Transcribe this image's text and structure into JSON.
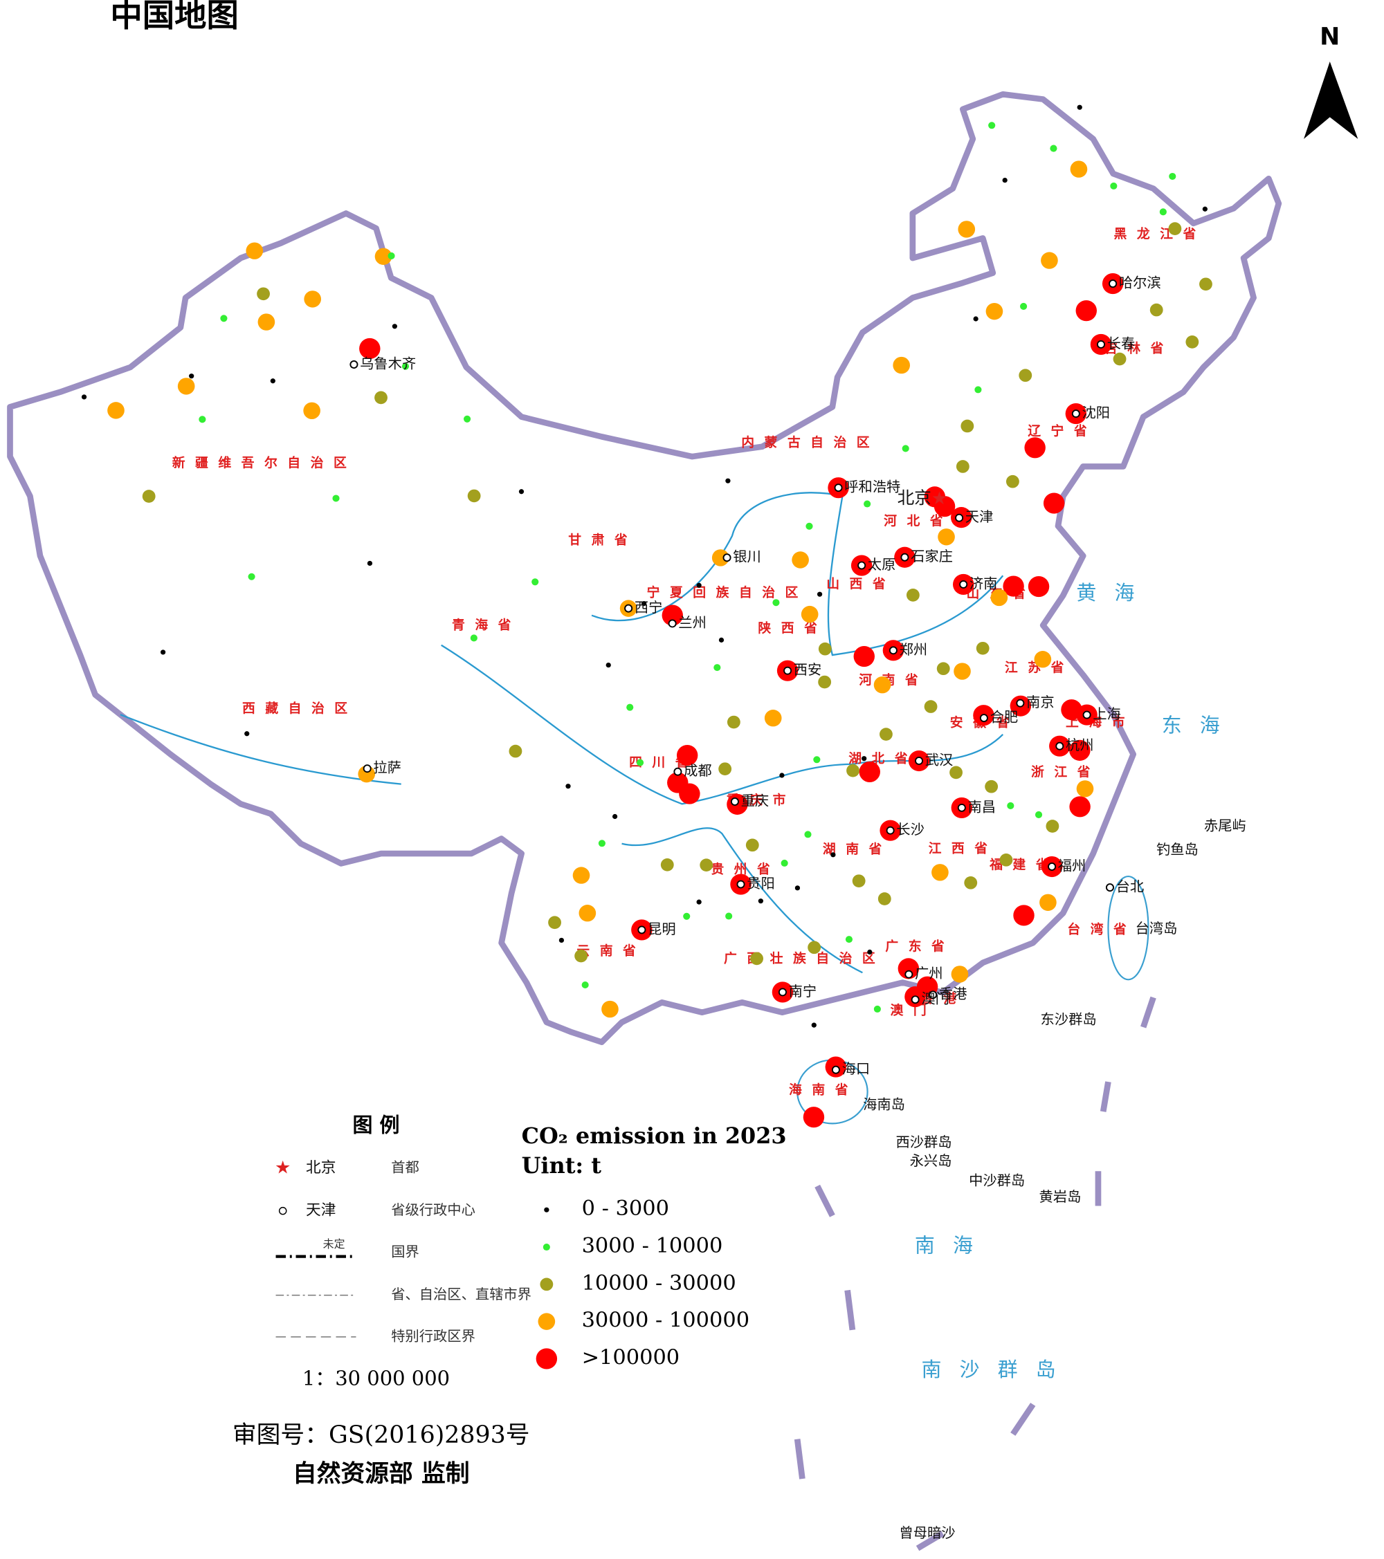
{
  "title": "中国地图",
  "north": "N",
  "legend": {
    "title": "图 例",
    "items": [
      {
        "symbol": "北京",
        "text": "首都"
      },
      {
        "symbol": "天津",
        "text": "省级行政中心"
      },
      {
        "symbol": "未定",
        "text": "国界"
      },
      {
        "text": "省、自治区、直辖市界"
      },
      {
        "text": "特别行政区界"
      }
    ],
    "scale": "1：30 000 000"
  },
  "footer": {
    "approval": "审图号：GS(2016)2893号",
    "maker": "自然资源部 监制"
  },
  "emission_legend": {
    "title": "CO₂ emission in 2023",
    "unit": "Uint:  t",
    "classes": [
      {
        "label": "0 - 3000",
        "color": "#000000"
      },
      {
        "label": "3000 - 10000",
        "color": "#33ee33"
      },
      {
        "label": "10000 - 30000",
        "color": "#a3a01e"
      },
      {
        "label": "30000 - 100000",
        "color": "#ffa500"
      },
      {
        "label": ">100000",
        "color": "#ff0000"
      }
    ]
  },
  "map": {
    "provinces": [
      {
        "name": "新疆维吾尔自治区",
        "lon": 84.5,
        "lat": 39.5
      },
      {
        "name": "西藏自治区",
        "lon": 88,
        "lat": 31.3
      },
      {
        "name": "青海省",
        "lon": 95.5,
        "lat": 35.5
      },
      {
        "name": "甘肃省",
        "lon": 100.5,
        "lat": 39
      },
      {
        "name": "内蒙古自治区",
        "lon": 110.5,
        "lat": 42.5
      },
      {
        "name": "宁夏回族自治区",
        "lon": 106.3,
        "lat": 37.2
      },
      {
        "name": "陕西省",
        "lon": 109.2,
        "lat": 35.8
      },
      {
        "name": "山西省",
        "lon": 112.4,
        "lat": 37.2
      },
      {
        "name": "河北省",
        "lon": 115.3,
        "lat": 39.2
      },
      {
        "name": "山东省",
        "lon": 118.6,
        "lat": 36.1
      },
      {
        "name": "河南省",
        "lon": 113.5,
        "lat": 33.6
      },
      {
        "name": "江苏省",
        "lon": 119.8,
        "lat": 33.2
      },
      {
        "name": "安徽省",
        "lon": 117.2,
        "lat": 31.6
      },
      {
        "name": "上海市",
        "lon": 122,
        "lat": 30.8
      },
      {
        "name": "湖北省",
        "lon": 112.8,
        "lat": 30.8
      },
      {
        "name": "重庆市",
        "lon": 107.6,
        "lat": 29.6
      },
      {
        "name": "四川省",
        "lon": 103.5,
        "lat": 31
      },
      {
        "name": "贵州省",
        "lon": 106.9,
        "lat": 27.1
      },
      {
        "name": "云南省",
        "lon": 101.5,
        "lat": 24.2
      },
      {
        "name": "湖南省",
        "lon": 111.5,
        "lat": 27.6
      },
      {
        "name": "江西省",
        "lon": 115.8,
        "lat": 27.2
      },
      {
        "name": "浙江省",
        "lon": 120.3,
        "lat": 29.3
      },
      {
        "name": "福建省",
        "lon": 118.2,
        "lat": 26.3
      },
      {
        "name": "广东省",
        "lon": 113.8,
        "lat": 24
      },
      {
        "name": "广西壮族自治区",
        "lon": 109.2,
        "lat": 23.9
      },
      {
        "name": "海南省",
        "lon": 109.8,
        "lat": 19.3
      },
      {
        "name": "台湾省",
        "lon": 121,
        "lat": 23.6
      },
      {
        "name": "香港",
        "lon": 114.6,
        "lat": 22.1
      },
      {
        "name": "澳门",
        "lon": 113.4,
        "lat": 21.8
      },
      {
        "name": "辽宁省",
        "lon": 122.6,
        "lat": 41.3
      },
      {
        "name": "吉林省",
        "lon": 127,
        "lat": 43.3
      },
      {
        "name": "黑龙江省",
        "lon": 129.5,
        "lat": 46.8
      }
    ],
    "cities": [
      {
        "name": "乌鲁木齐",
        "lon": 87.6,
        "lat": 43.8
      },
      {
        "name": "拉萨",
        "lon": 91.1,
        "lat": 29.7
      },
      {
        "name": "西宁",
        "lon": 101.8,
        "lat": 36.6
      },
      {
        "name": "兰州",
        "lon": 103.8,
        "lat": 36.1
      },
      {
        "name": "银川",
        "lon": 106.3,
        "lat": 38.5
      },
      {
        "name": "呼和浩特",
        "lon": 111.7,
        "lat": 40.8
      },
      {
        "name": "太原",
        "lon": 112.5,
        "lat": 37.9
      },
      {
        "name": "石家庄",
        "lon": 114.5,
        "lat": 38.0
      },
      {
        "name": "天津",
        "lon": 117.2,
        "lat": 39.1
      },
      {
        "name": "济南",
        "lon": 117.0,
        "lat": 36.7
      },
      {
        "name": "郑州",
        "lon": 113.6,
        "lat": 34.7
      },
      {
        "name": "西安",
        "lon": 108.9,
        "lat": 34.3
      },
      {
        "name": "成都",
        "lon": 104.1,
        "lat": 30.7
      },
      {
        "name": "重庆",
        "lon": 106.5,
        "lat": 29.6
      },
      {
        "name": "武汉",
        "lon": 114.3,
        "lat": 30.6
      },
      {
        "name": "合肥",
        "lon": 117.2,
        "lat": 31.8
      },
      {
        "name": "南京",
        "lon": 118.8,
        "lat": 32.1
      },
      {
        "name": "上海",
        "lon": 121.5,
        "lat": 31.2
      },
      {
        "name": "杭州",
        "lon": 120.2,
        "lat": 30.3
      },
      {
        "name": "南昌",
        "lon": 115.9,
        "lat": 28.7
      },
      {
        "name": "长沙",
        "lon": 112.9,
        "lat": 28.2
      },
      {
        "name": "贵阳",
        "lon": 106.7,
        "lat": 26.6
      },
      {
        "name": "昆明",
        "lon": 102.7,
        "lat": 25.0
      },
      {
        "name": "南宁",
        "lon": 108.3,
        "lat": 22.8
      },
      {
        "name": "广州",
        "lon": 113.3,
        "lat": 23.1
      },
      {
        "name": "香港",
        "lon": 114.2,
        "lat": 22.3
      },
      {
        "name": "澳门",
        "lon": 113.5,
        "lat": 22.2
      },
      {
        "name": "福州",
        "lon": 119.3,
        "lat": 26.1
      },
      {
        "name": "台北",
        "lon": 121.5,
        "lat": 25.0
      },
      {
        "name": "海口",
        "lon": 110.3,
        "lat": 20.0
      },
      {
        "name": "沈阳",
        "lon": 123.4,
        "lat": 41.8
      },
      {
        "name": "长春",
        "lon": 125.3,
        "lat": 43.9
      },
      {
        "name": "哈尔滨",
        "lon": 126.6,
        "lat": 45.8
      }
    ],
    "capital": {
      "name": "北京",
      "lon": 116.4,
      "lat": 39.9
    },
    "islands": [
      {
        "name": "钓鱼岛",
        "lon": 123.5,
        "lat": 25.9
      },
      {
        "name": "赤尾屿",
        "lon": 125.5,
        "lat": 26.3
      },
      {
        "name": "台湾岛",
        "lon": 122.3,
        "lat": 23.4
      },
      {
        "name": "海南岛",
        "lon": 111.3,
        "lat": 18.7
      },
      {
        "name": "东沙群岛",
        "lon": 118.3,
        "lat": 20.9
      },
      {
        "name": "西沙群岛",
        "lon": 112.5,
        "lat": 17.3
      },
      {
        "name": "永兴岛",
        "lon": 113.0,
        "lat": 16.6
      },
      {
        "name": "中沙群岛",
        "lon": 115.2,
        "lat": 15.7
      },
      {
        "name": "黄岩岛",
        "lon": 117.8,
        "lat": 14.8
      },
      {
        "name": "曾母暗沙",
        "lon": 112.3,
        "lat": 3.7
      }
    ],
    "seas": [
      {
        "name": "黄海",
        "lon": 123.5,
        "lat": 35.2
      },
      {
        "name": "东海",
        "lon": 126,
        "lat": 29.8
      },
      {
        "name": "南海",
        "lon": 114.5,
        "lat": 13.5
      },
      {
        "name": "南沙群岛",
        "lon": 116,
        "lat": 9
      }
    ],
    "points": [
      [
        88.2,
        44.5,
        4
      ],
      [
        103.8,
        36.4,
        4
      ],
      [
        108.9,
        34.3,
        4
      ],
      [
        104.5,
        31.3,
        4
      ],
      [
        104.1,
        30.3,
        4
      ],
      [
        104.6,
        29.9,
        4
      ],
      [
        106.6,
        29.5,
        4
      ],
      [
        106.7,
        26.6,
        4
      ],
      [
        102.7,
        25.0,
        4
      ],
      [
        108.3,
        22.8,
        4
      ],
      [
        113.3,
        23.3,
        4
      ],
      [
        114.0,
        22.6,
        4
      ],
      [
        113.5,
        22.3,
        4
      ],
      [
        110.3,
        20.1,
        4
      ],
      [
        109.4,
        18.4,
        4
      ],
      [
        112.9,
        28.2,
        4
      ],
      [
        112.2,
        30.4,
        4
      ],
      [
        114.3,
        30.6,
        4
      ],
      [
        115.9,
        28.7,
        4
      ],
      [
        119.3,
        26.1,
        4
      ],
      [
        118.0,
        24.6,
        4
      ],
      [
        120.2,
        30.3,
        4
      ],
      [
        121.0,
        30.0,
        4
      ],
      [
        120.7,
        28.0,
        4
      ],
      [
        121.5,
        31.2,
        4
      ],
      [
        120.9,
        31.5,
        4
      ],
      [
        118.8,
        32.0,
        4
      ],
      [
        117.2,
        31.9,
        4
      ],
      [
        113.6,
        34.7,
        4
      ],
      [
        112.3,
        34.6,
        4
      ],
      [
        117.0,
        36.7,
        4
      ],
      [
        119.2,
        36.3,
        4
      ],
      [
        120.3,
        36.1,
        4
      ],
      [
        114.5,
        38.0,
        4
      ],
      [
        112.5,
        37.9,
        4
      ],
      [
        116.2,
        40.0,
        4
      ],
      [
        116.6,
        39.6,
        4
      ],
      [
        117.3,
        39.1,
        4
      ],
      [
        111.7,
        40.8,
        4
      ],
      [
        121.6,
        38.9,
        4
      ],
      [
        121.2,
        41.0,
        4
      ],
      [
        123.4,
        41.8,
        4
      ],
      [
        125.3,
        43.9,
        4
      ],
      [
        126.6,
        45.8,
        4
      ],
      [
        125.0,
        45.2,
        4
      ],
      [
        81.5,
        46.5,
        3
      ],
      [
        84.9,
        45.6,
        3
      ],
      [
        80.2,
        41.2,
        3
      ],
      [
        86.1,
        41.8,
        3
      ],
      [
        87.9,
        47.8,
        3
      ],
      [
        83.0,
        44.3,
        3
      ],
      [
        77.5,
        39.5,
        3
      ],
      [
        91.1,
        29.5,
        3
      ],
      [
        101.8,
        36.6,
        3
      ],
      [
        106.0,
        38.5,
        3
      ],
      [
        109.7,
        38.3,
        3
      ],
      [
        110.0,
        36.3,
        3
      ],
      [
        116.5,
        38.5,
        3
      ],
      [
        118.5,
        36.0,
        3
      ],
      [
        120.0,
        33.5,
        3
      ],
      [
        121.0,
        28.6,
        3
      ],
      [
        119.0,
        24.9,
        3
      ],
      [
        115.3,
        22.9,
        3
      ],
      [
        114.8,
        26.5,
        3
      ],
      [
        100.2,
        26.8,
        3
      ],
      [
        100.5,
        25.5,
        3
      ],
      [
        101.5,
        22.2,
        3
      ],
      [
        123.8,
        47.3,
        3
      ],
      [
        120.5,
        46.1,
        3
      ],
      [
        119.9,
        49.2,
        3
      ],
      [
        126.5,
        50.0,
        3
      ],
      [
        115.4,
        44.9,
        3
      ],
      [
        108.2,
        32.6,
        3
      ],
      [
        113.0,
        33.5,
        3
      ],
      [
        116.5,
        33.6,
        3
      ],
      [
        82.5,
        45.2,
        2
      ],
      [
        89.2,
        42.9,
        2
      ],
      [
        94.3,
        40.1,
        2
      ],
      [
        79.9,
        37.1,
        2
      ],
      [
        97.2,
        31.1,
        2
      ],
      [
        100.3,
        24.0,
        2
      ],
      [
        99.2,
        25.1,
        2
      ],
      [
        106.5,
        32.5,
        2
      ],
      [
        110.5,
        33.8,
        2
      ],
      [
        111.5,
        30.5,
        2
      ],
      [
        113.0,
        31.7,
        2
      ],
      [
        115.0,
        32.5,
        2
      ],
      [
        115.7,
        33.8,
        2
      ],
      [
        117.5,
        34.3,
        2
      ],
      [
        115.8,
        30.0,
        2
      ],
      [
        117.2,
        29.3,
        2
      ],
      [
        119.5,
        27.5,
        2
      ],
      [
        116.0,
        26.0,
        2
      ],
      [
        117.5,
        26.6,
        2
      ],
      [
        111.5,
        26.5,
        2
      ],
      [
        112.5,
        25.8,
        2
      ],
      [
        109.6,
        24.3,
        2
      ],
      [
        107.3,
        24.0,
        2
      ],
      [
        107.2,
        28.0,
        2
      ],
      [
        105.3,
        27.3,
        2
      ],
      [
        103.7,
        27.3,
        2
      ],
      [
        106.1,
        30.8,
        2
      ],
      [
        110.6,
        35.0,
        2
      ],
      [
        114.7,
        36.6,
        2
      ],
      [
        117.7,
        40.9,
        2
      ],
      [
        119.9,
        40.0,
        2
      ],
      [
        118.2,
        42.3,
        2
      ],
      [
        121.4,
        43.6,
        2
      ],
      [
        130.3,
        46.8,
        2
      ],
      [
        128.3,
        44.4,
        2
      ],
      [
        130.9,
        44.6,
        2
      ],
      [
        129.5,
        42.9,
        2
      ],
      [
        126.0,
        43.2,
        2
      ],
      [
        88.3,
        47.9,
        1
      ],
      [
        90.1,
        44.2,
        1
      ],
      [
        93.5,
        42.8,
        1
      ],
      [
        81.0,
        43.9,
        1
      ],
      [
        81.3,
        40.3,
        1
      ],
      [
        88.0,
        39.0,
        1
      ],
      [
        95.0,
        35.0,
        1
      ],
      [
        85.0,
        35.5,
        1
      ],
      [
        97.5,
        37.3,
        1
      ],
      [
        102.0,
        33.0,
        1
      ],
      [
        102.5,
        31.0,
        1
      ],
      [
        101.0,
        28.0,
        1
      ],
      [
        100.5,
        23.0,
        1
      ],
      [
        104.5,
        25.5,
        1
      ],
      [
        105.8,
        34.5,
        1
      ],
      [
        108.5,
        36.8,
        1
      ],
      [
        110.2,
        39.5,
        1
      ],
      [
        113.0,
        40.1,
        1
      ],
      [
        115.1,
        41.9,
        1
      ],
      [
        119.0,
        43.5,
        1
      ],
      [
        122.0,
        46.0,
        1
      ],
      [
        128.0,
        49.0,
        1
      ],
      [
        130.0,
        47.5,
        1
      ],
      [
        131.0,
        48.5,
        1
      ],
      [
        125.5,
        51.0,
        1
      ],
      [
        122.5,
        52.5,
        1
      ],
      [
        119.0,
        28.0,
        1
      ],
      [
        117.9,
        28.5,
        1
      ],
      [
        109.5,
        28.3,
        1
      ],
      [
        110.0,
        31.0,
        1
      ],
      [
        112.0,
        22.0,
        1
      ],
      [
        111.0,
        24.5,
        1
      ],
      [
        106.2,
        25.5,
        1
      ],
      [
        108.5,
        27.3,
        1
      ],
      [
        76.0,
        39.5,
        0
      ],
      [
        80.3,
        41.6,
        0
      ],
      [
        84.0,
        42.4,
        0
      ],
      [
        89.2,
        45.5,
        0
      ],
      [
        90.0,
        37.0,
        0
      ],
      [
        96.5,
        40.5,
        0
      ],
      [
        86.0,
        30.0,
        0
      ],
      [
        82.0,
        32.0,
        0
      ],
      [
        102.5,
        36.8,
        0
      ],
      [
        105.0,
        37.5,
        0
      ],
      [
        101.0,
        34.5,
        0
      ],
      [
        99.5,
        30.0,
        0
      ],
      [
        101.5,
        29.0,
        0
      ],
      [
        106.0,
        35.5,
        0
      ],
      [
        107.5,
        26.0,
        0
      ],
      [
        105.0,
        26.0,
        0
      ],
      [
        109.0,
        26.4,
        0
      ],
      [
        110.5,
        27.5,
        0
      ],
      [
        112.0,
        30.9,
        0
      ],
      [
        110.5,
        37.0,
        0
      ],
      [
        106.4,
        41.3,
        0
      ],
      [
        122.5,
        50.5,
        0
      ],
      [
        127.5,
        52.0,
        0
      ],
      [
        132.0,
        47.0,
        0
      ],
      [
        119.5,
        46.0,
        0
      ],
      [
        111.8,
        24.0,
        0
      ],
      [
        99.5,
        24.5,
        0
      ],
      [
        108.5,
        30.5,
        0
      ],
      [
        109.5,
        21.6,
        0
      ]
    ]
  }
}
